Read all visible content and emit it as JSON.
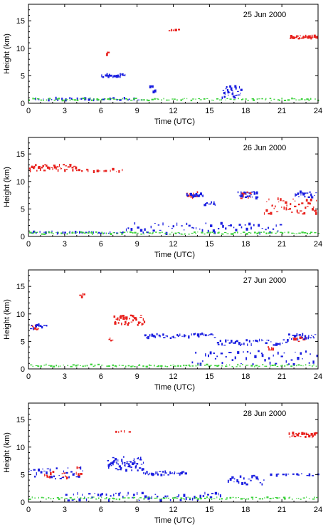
{
  "colors": {
    "ice": "#e8201c",
    "liquid": "#1a1ee0",
    "aerosol": "#3cd23c",
    "axis": "#000000"
  },
  "chart_data": [
    {
      "type": "scatter",
      "title": "25 Jun 2000",
      "xlabel": "Time (UTC)",
      "ylabel": "Height (km)",
      "xlim": [
        0,
        24
      ],
      "ylim": [
        0,
        18
      ],
      "xticks": [
        0,
        3,
        6,
        9,
        12,
        15,
        18,
        21,
        24
      ],
      "yticks": [
        0,
        5,
        10,
        15
      ],
      "grid": false,
      "series": [
        {
          "class": "ice",
          "color": "#e8201c",
          "segments": [
            {
              "x0": 6.4,
              "x1": 6.6,
              "y": 9.0,
              "h": 0.7,
              "n": 3
            },
            {
              "x0": 21.6,
              "x1": 23.9,
              "y": 12.0,
              "h": 0.6,
              "n": 30
            },
            {
              "x0": 11.5,
              "x1": 12.5,
              "y": 13.3,
              "h": 0.3,
              "n": 5
            }
          ]
        },
        {
          "class": "liquid",
          "color": "#1a1ee0",
          "segments": [
            {
              "x0": 6.0,
              "x1": 8.0,
              "y": 5.0,
              "h": 0.5,
              "n": 22
            },
            {
              "x0": 10.0,
              "x1": 10.5,
              "y": 2.5,
              "h": 1.5,
              "n": 8
            },
            {
              "x0": 16.0,
              "x1": 17.6,
              "y": 2.0,
              "h": 2.2,
              "n": 28
            },
            {
              "x0": 0.5,
              "x1": 9.5,
              "y": 0.8,
              "h": 0.4,
              "n": 30
            }
          ]
        },
        {
          "class": "aerosol",
          "color": "#3cd23c",
          "segments": [
            {
              "x0": 0.0,
              "x1": 24.0,
              "y": 0.7,
              "h": 0.4,
              "n": 110
            }
          ]
        }
      ]
    },
    {
      "type": "scatter",
      "title": "26 Jun 2000",
      "xlabel": "Time (UTC)",
      "ylabel": "Height (km)",
      "xlim": [
        0,
        24
      ],
      "ylim": [
        0,
        18
      ],
      "xticks": [
        0,
        3,
        6,
        9,
        12,
        15,
        18,
        21,
        24
      ],
      "yticks": [
        0,
        5,
        10,
        15
      ],
      "grid": false,
      "series": [
        {
          "class": "ice",
          "color": "#e8201c",
          "segments": [
            {
              "x0": 0.0,
              "x1": 4.0,
              "y": 12.5,
              "h": 1.2,
              "n": 40
            },
            {
              "x0": 4.0,
              "x1": 8.0,
              "y": 12.0,
              "h": 0.5,
              "n": 14
            },
            {
              "x0": 13.0,
              "x1": 14.0,
              "y": 7.5,
              "h": 1.2,
              "n": 10
            },
            {
              "x0": 17.5,
              "x1": 18.5,
              "y": 7.5,
              "h": 1.3,
              "n": 10
            },
            {
              "x0": 19.5,
              "x1": 23.9,
              "y": 5.5,
              "h": 2.8,
              "n": 45
            }
          ]
        },
        {
          "class": "liquid",
          "color": "#1a1ee0",
          "segments": [
            {
              "x0": 13.0,
              "x1": 14.5,
              "y": 7.5,
              "h": 0.6,
              "n": 14
            },
            {
              "x0": 14.5,
              "x1": 15.5,
              "y": 6.0,
              "h": 0.8,
              "n": 10
            },
            {
              "x0": 17.3,
              "x1": 19.0,
              "y": 7.6,
              "h": 1.2,
              "n": 20
            },
            {
              "x0": 22.0,
              "x1": 23.8,
              "y": 7.6,
              "h": 1.0,
              "n": 18
            },
            {
              "x0": 8.0,
              "x1": 21.0,
              "y": 1.5,
              "h": 2.0,
              "n": 60
            },
            {
              "x0": 0.0,
              "x1": 8.0,
              "y": 0.7,
              "h": 0.3,
              "n": 30
            }
          ]
        },
        {
          "class": "aerosol",
          "color": "#3cd23c",
          "segments": [
            {
              "x0": 0.0,
              "x1": 24.0,
              "y": 0.6,
              "h": 0.4,
              "n": 110
            }
          ]
        }
      ]
    },
    {
      "type": "scatter",
      "title": "27 Jun 2000",
      "xlabel": "Time (UTC)",
      "ylabel": "Height (km)",
      "xlim": [
        0,
        24
      ],
      "ylim": [
        0,
        18
      ],
      "xticks": [
        0,
        3,
        6,
        9,
        12,
        15,
        18,
        21,
        24
      ],
      "yticks": [
        0,
        5,
        10,
        15
      ],
      "grid": false,
      "series": [
        {
          "class": "ice",
          "color": "#e8201c",
          "segments": [
            {
              "x0": 0.2,
              "x1": 0.8,
              "y": 7.6,
              "h": 1.0,
              "n": 8
            },
            {
              "x0": 4.2,
              "x1": 4.6,
              "y": 13.3,
              "h": 0.6,
              "n": 4
            },
            {
              "x0": 6.6,
              "x1": 6.9,
              "y": 5.3,
              "h": 1.2,
              "n": 4
            },
            {
              "x0": 7.0,
              "x1": 9.6,
              "y": 8.8,
              "h": 2.0,
              "n": 36
            },
            {
              "x0": 19.8,
              "x1": 20.3,
              "y": 4.0,
              "h": 1.8,
              "n": 6
            },
            {
              "x0": 21.8,
              "x1": 23.0,
              "y": 5.3,
              "h": 0.8,
              "n": 10
            }
          ]
        },
        {
          "class": "liquid",
          "color": "#1a1ee0",
          "segments": [
            {
              "x0": 0.0,
              "x1": 1.5,
              "y": 7.6,
              "h": 0.8,
              "n": 10
            },
            {
              "x0": 9.5,
              "x1": 15.5,
              "y": 6.0,
              "h": 0.8,
              "n": 40
            },
            {
              "x0": 15.5,
              "x1": 21.5,
              "y": 4.8,
              "h": 1.0,
              "n": 40
            },
            {
              "x0": 21.5,
              "x1": 23.8,
              "y": 5.8,
              "h": 1.0,
              "n": 22
            },
            {
              "x0": 13.5,
              "x1": 23.9,
              "y": 2.0,
              "h": 2.5,
              "n": 50
            }
          ]
        },
        {
          "class": "aerosol",
          "color": "#3cd23c",
          "segments": [
            {
              "x0": 0.0,
              "x1": 24.0,
              "y": 0.6,
              "h": 0.4,
              "n": 110
            }
          ]
        }
      ]
    },
    {
      "type": "scatter",
      "title": "28 Jun 2000",
      "xlabel": "Time (UTC)",
      "ylabel": "Height (km)",
      "xlim": [
        0,
        24
      ],
      "ylim": [
        0,
        18
      ],
      "xticks": [
        0,
        3,
        6,
        9,
        12,
        15,
        18,
        21,
        24
      ],
      "yticks": [
        0,
        5,
        10,
        15
      ],
      "grid": false,
      "series": [
        {
          "class": "ice",
          "color": "#e8201c",
          "segments": [
            {
              "x0": 1.3,
              "x1": 2.0,
              "y": 5.0,
              "h": 1.2,
              "n": 8
            },
            {
              "x0": 2.7,
              "x1": 3.3,
              "y": 5.0,
              "h": 1.2,
              "n": 6
            },
            {
              "x0": 3.9,
              "x1": 4.3,
              "y": 5.5,
              "h": 2.5,
              "n": 6
            },
            {
              "x0": 21.5,
              "x1": 23.8,
              "y": 12.2,
              "h": 0.8,
              "n": 24
            },
            {
              "x0": 7.0,
              "x1": 8.5,
              "y": 12.8,
              "h": 0.4,
              "n": 5
            }
          ]
        },
        {
          "class": "liquid",
          "color": "#1a1ee0",
          "segments": [
            {
              "x0": 0.0,
              "x1": 4.5,
              "y": 5.2,
              "h": 2.0,
              "n": 30
            },
            {
              "x0": 6.5,
              "x1": 9.5,
              "y": 7.0,
              "h": 2.5,
              "n": 60
            },
            {
              "x0": 9.5,
              "x1": 13.0,
              "y": 5.2,
              "h": 0.7,
              "n": 30
            },
            {
              "x0": 16.5,
              "x1": 19.5,
              "y": 4.0,
              "h": 1.8,
              "n": 22
            },
            {
              "x0": 20.0,
              "x1": 24.0,
              "y": 5.0,
              "h": 0.4,
              "n": 14
            },
            {
              "x0": 3.0,
              "x1": 16.0,
              "y": 1.0,
              "h": 1.4,
              "n": 60
            }
          ]
        },
        {
          "class": "aerosol",
          "color": "#3cd23c",
          "segments": [
            {
              "x0": 0.0,
              "x1": 24.0,
              "y": 0.7,
              "h": 0.4,
              "n": 110
            }
          ]
        }
      ]
    }
  ]
}
